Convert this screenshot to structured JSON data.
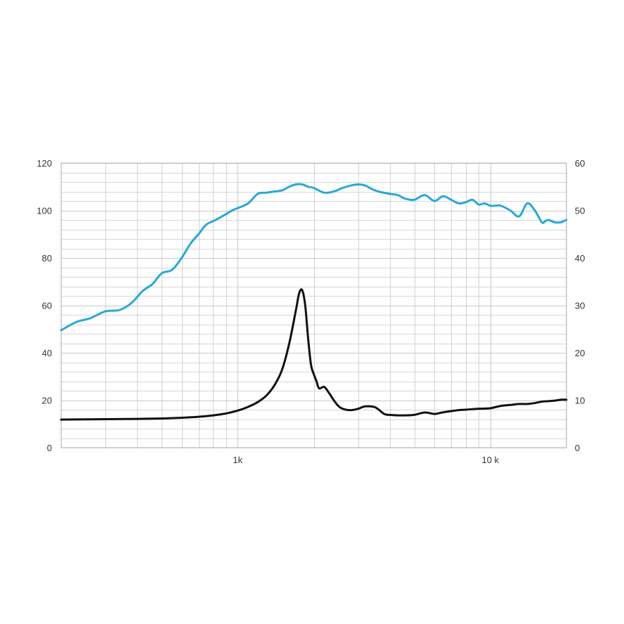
{
  "chart_data": {
    "type": "line",
    "title": "",
    "xlabel": "",
    "ylabel": "",
    "y2label": "",
    "x_scale": "log",
    "xlim": [
      200,
      20000
    ],
    "ylim": [
      0,
      120
    ],
    "y2lim": [
      0,
      60
    ],
    "grid": true,
    "legend": "none",
    "x_tick_labels": [
      {
        "value": 1000,
        "label": "1k"
      },
      {
        "value": 10000,
        "label": "10 k"
      }
    ],
    "y_ticks": [
      0,
      20,
      40,
      60,
      80,
      100,
      120
    ],
    "y2_ticks": [
      0,
      10,
      20,
      30,
      40,
      50,
      60
    ],
    "colors": {
      "frequency_response": "#29a8d8",
      "impedance": "#111111",
      "grid": "#c8c8c8"
    },
    "series": [
      {
        "axis": "left",
        "color": "#29a8d8",
        "x": [
          200,
          230,
          260,
          300,
          340,
          380,
          420,
          460,
          500,
          550,
          600,
          650,
          700,
          750,
          800,
          850,
          900,
          950,
          1000,
          1100,
          1200,
          1300,
          1400,
          1500,
          1600,
          1700,
          1800,
          1900,
          2000,
          2200,
          2400,
          2600,
          2800,
          3000,
          3200,
          3400,
          3600,
          4000,
          4300,
          4600,
          5000,
          5500,
          6000,
          6500,
          7000,
          7500,
          8000,
          8500,
          9000,
          9500,
          10000,
          10500,
          11000,
          12000,
          13000,
          14000,
          15000,
          16000,
          16500,
          17000,
          18000,
          19000,
          19500,
          20000
        ],
        "values": [
          49.5,
          53,
          54.5,
          57.5,
          58,
          61,
          66,
          69,
          73.5,
          75,
          80,
          86,
          90,
          94,
          95.5,
          97,
          98.5,
          100,
          101,
          103,
          107,
          107.5,
          108,
          108.5,
          110,
          111,
          111,
          110,
          109.5,
          107.5,
          108,
          109.5,
          110.5,
          111,
          110.5,
          109,
          108,
          107,
          106.5,
          105,
          104.5,
          106.5,
          104,
          106,
          104.5,
          103,
          103.5,
          104.5,
          102.5,
          103,
          102,
          102,
          102,
          100,
          97.5,
          103,
          100,
          95,
          95.5,
          96,
          95,
          95,
          95.5,
          96
        ]
      },
      {
        "axis": "right",
        "color": "#111111",
        "x": [
          200,
          300,
          400,
          500,
          600,
          700,
          800,
          900,
          1000,
          1100,
          1200,
          1300,
          1400,
          1500,
          1600,
          1700,
          1750,
          1800,
          1850,
          1900,
          1950,
          2000,
          2050,
          2100,
          2200,
          2300,
          2400,
          2500,
          2600,
          2800,
          3000,
          3200,
          3500,
          3800,
          4000,
          4300,
          4600,
          5000,
          5500,
          6000,
          6300,
          6600,
          7000,
          7500,
          8000,
          9000,
          10000,
          11000,
          12000,
          13000,
          14000,
          15000,
          16000,
          17000,
          18000,
          19000,
          20000
        ],
        "values": [
          5.9,
          6,
          6.05,
          6.15,
          6.3,
          6.5,
          6.8,
          7.2,
          7.8,
          8.6,
          9.6,
          11,
          13.2,
          16.5,
          22,
          29,
          32.5,
          33.2,
          30,
          23,
          17.5,
          15.5,
          14,
          12.5,
          12.8,
          11.5,
          10,
          8.8,
          8.2,
          7.9,
          8.2,
          8.7,
          8.5,
          7.1,
          6.9,
          6.8,
          6.8,
          6.9,
          7.4,
          7.1,
          7.3,
          7.5,
          7.7,
          7.9,
          8.0,
          8.2,
          8.3,
          8.8,
          9.0,
          9.2,
          9.2,
          9.4,
          9.7,
          9.8,
          9.9,
          10.1,
          10.1
        ]
      }
    ]
  }
}
